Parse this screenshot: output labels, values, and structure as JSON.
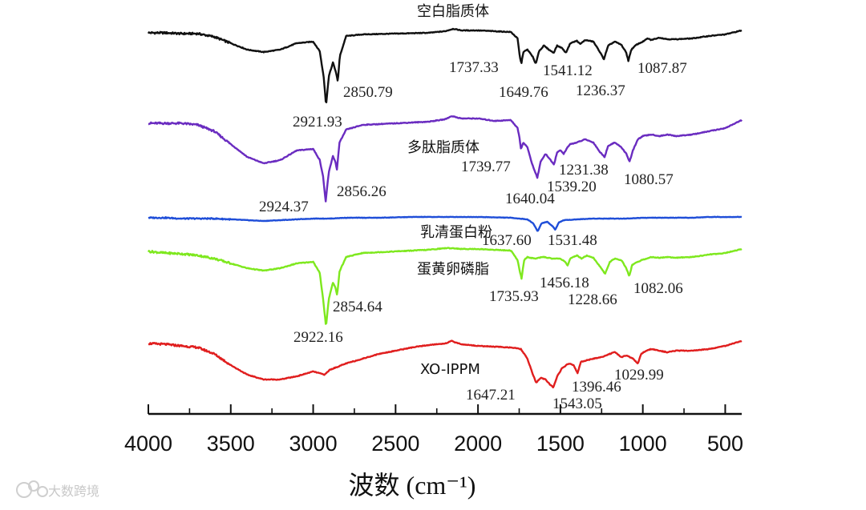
{
  "chart_data": {
    "type": "line",
    "xlabel": "波数 (cm⁻¹)",
    "xlim": [
      4000,
      400
    ],
    "x_ticks": [
      "4000",
      "3500",
      "3000",
      "2500",
      "2000",
      "1500",
      "1000",
      "500"
    ],
    "series": [
      {
        "name": "空白脂质体",
        "color": "#111111",
        "points": [
          [
            4000,
            -1
          ],
          [
            3900,
            -1
          ],
          [
            3800,
            -2
          ],
          [
            3700,
            -2
          ],
          [
            3600,
            -6
          ],
          [
            3500,
            -14
          ],
          [
            3400,
            -22
          ],
          [
            3300,
            -25
          ],
          [
            3200,
            -22
          ],
          [
            3100,
            -14
          ],
          [
            3000,
            -12
          ],
          [
            2960,
            -24
          ],
          [
            2935,
            -58
          ],
          [
            2921.93,
            -92
          ],
          [
            2905,
            -55
          ],
          [
            2880,
            -38
          ],
          [
            2862,
            -50
          ],
          [
            2850.79,
            -62
          ],
          [
            2838,
            -30
          ],
          [
            2800,
            -5
          ],
          [
            2700,
            -3
          ],
          [
            2500,
            -2
          ],
          [
            2300,
            -1
          ],
          [
            2200,
            1
          ],
          [
            2150,
            4
          ],
          [
            2100,
            2
          ],
          [
            2000,
            2
          ],
          [
            1900,
            1
          ],
          [
            1800,
            0
          ],
          [
            1760,
            -8
          ],
          [
            1748,
            -28
          ],
          [
            1737.33,
            -40
          ],
          [
            1725,
            -25
          ],
          [
            1700,
            -22
          ],
          [
            1670,
            -30
          ],
          [
            1649.76,
            -40
          ],
          [
            1630,
            -24
          ],
          [
            1600,
            -17
          ],
          [
            1570,
            -22
          ],
          [
            1541.12,
            -26
          ],
          [
            1520,
            -17
          ],
          [
            1490,
            -20
          ],
          [
            1467,
            -26
          ],
          [
            1440,
            -14
          ],
          [
            1400,
            -11
          ],
          [
            1380,
            -15
          ],
          [
            1350,
            -10
          ],
          [
            1300,
            -12
          ],
          [
            1260,
            -25
          ],
          [
            1236.37,
            -34
          ],
          [
            1210,
            -17
          ],
          [
            1170,
            -12
          ],
          [
            1130,
            -16
          ],
          [
            1100,
            -26
          ],
          [
            1087.87,
            -36
          ],
          [
            1070,
            -22
          ],
          [
            1040,
            -16
          ],
          [
            1000,
            -12
          ],
          [
            970,
            -8
          ],
          [
            950,
            -10
          ],
          [
            900,
            -7
          ],
          [
            850,
            -9
          ],
          [
            800,
            -9
          ],
          [
            700,
            -8
          ],
          [
            600,
            -5
          ],
          [
            500,
            -3
          ],
          [
            400,
            2
          ]
        ]
      },
      {
        "name": "多肽脂质体",
        "color": "#6a2cc0",
        "points": [
          [
            4000,
            -4
          ],
          [
            3900,
            -4
          ],
          [
            3800,
            -4
          ],
          [
            3700,
            -6
          ],
          [
            3600,
            -14
          ],
          [
            3500,
            -30
          ],
          [
            3400,
            -46
          ],
          [
            3300,
            -54
          ],
          [
            3200,
            -50
          ],
          [
            3100,
            -38
          ],
          [
            3000,
            -36
          ],
          [
            2960,
            -50
          ],
          [
            2940,
            -70
          ],
          [
            2924.37,
            -102
          ],
          [
            2905,
            -65
          ],
          [
            2880,
            -45
          ],
          [
            2865,
            -52
          ],
          [
            2856.26,
            -62
          ],
          [
            2840,
            -28
          ],
          [
            2800,
            -12
          ],
          [
            2700,
            -6
          ],
          [
            2500,
            -4
          ],
          [
            2300,
            -2
          ],
          [
            2200,
            1
          ],
          [
            2160,
            5
          ],
          [
            2100,
            2
          ],
          [
            2000,
            2
          ],
          [
            1900,
            -1
          ],
          [
            1800,
            0
          ],
          [
            1760,
            -10
          ],
          [
            1748,
            -22
          ],
          [
            1739.77,
            -36
          ],
          [
            1725,
            -28
          ],
          [
            1700,
            -34
          ],
          [
            1670,
            -56
          ],
          [
            1640.04,
            -72
          ],
          [
            1620,
            -52
          ],
          [
            1590,
            -42
          ],
          [
            1560,
            -50
          ],
          [
            1539.2,
            -56
          ],
          [
            1520,
            -40
          ],
          [
            1500,
            -38
          ],
          [
            1480,
            -42
          ],
          [
            1456,
            -34
          ],
          [
            1440,
            -30
          ],
          [
            1400,
            -28
          ],
          [
            1350,
            -24
          ],
          [
            1300,
            -28
          ],
          [
            1260,
            -40
          ],
          [
            1231.38,
            -46
          ],
          [
            1210,
            -32
          ],
          [
            1170,
            -28
          ],
          [
            1130,
            -34
          ],
          [
            1100,
            -42
          ],
          [
            1080.57,
            -52
          ],
          [
            1060,
            -38
          ],
          [
            1030,
            -24
          ],
          [
            1000,
            -20
          ],
          [
            950,
            -18
          ],
          [
            900,
            -20
          ],
          [
            850,
            -18
          ],
          [
            800,
            -20
          ],
          [
            700,
            -18
          ],
          [
            600,
            -14
          ],
          [
            500,
            -10
          ],
          [
            400,
            0
          ]
        ]
      },
      {
        "name": "乳清蛋白粉",
        "color": "#1f4ed8",
        "points": [
          [
            4000,
            -1
          ],
          [
            3900,
            -1
          ],
          [
            3800,
            -2
          ],
          [
            3700,
            -2
          ],
          [
            3600,
            -2
          ],
          [
            3500,
            -3
          ],
          [
            3400,
            -4
          ],
          [
            3300,
            -5
          ],
          [
            3200,
            -4
          ],
          [
            3100,
            -3
          ],
          [
            3000,
            -2
          ],
          [
            2900,
            -2
          ],
          [
            2800,
            -1
          ],
          [
            2600,
            -1
          ],
          [
            2400,
            0
          ],
          [
            2200,
            0
          ],
          [
            2000,
            0
          ],
          [
            1800,
            -1
          ],
          [
            1700,
            -3
          ],
          [
            1665,
            -8
          ],
          [
            1637.6,
            -18
          ],
          [
            1615,
            -8
          ],
          [
            1580,
            -6
          ],
          [
            1545,
            -12
          ],
          [
            1531.48,
            -16
          ],
          [
            1510,
            -7
          ],
          [
            1480,
            -4
          ],
          [
            1400,
            -3
          ],
          [
            1300,
            -2
          ],
          [
            1200,
            -2
          ],
          [
            1100,
            -2
          ],
          [
            1000,
            -1
          ],
          [
            900,
            -1
          ],
          [
            800,
            -1
          ],
          [
            700,
            -1
          ],
          [
            600,
            0
          ],
          [
            500,
            0
          ],
          [
            400,
            0
          ]
        ]
      },
      {
        "name": "蛋黄卵磷脂",
        "color": "#7ee81e",
        "points": [
          [
            4000,
            -1
          ],
          [
            3900,
            -3
          ],
          [
            3800,
            -4
          ],
          [
            3700,
            -6
          ],
          [
            3600,
            -10
          ],
          [
            3500,
            -16
          ],
          [
            3400,
            -22
          ],
          [
            3300,
            -25
          ],
          [
            3200,
            -22
          ],
          [
            3100,
            -16
          ],
          [
            3000,
            -14
          ],
          [
            2960,
            -28
          ],
          [
            2940,
            -60
          ],
          [
            2922.16,
            -95
          ],
          [
            2905,
            -60
          ],
          [
            2880,
            -40
          ],
          [
            2865,
            -46
          ],
          [
            2854.64,
            -56
          ],
          [
            2840,
            -26
          ],
          [
            2800,
            -8
          ],
          [
            2700,
            -3
          ],
          [
            2500,
            -1
          ],
          [
            2300,
            1
          ],
          [
            2200,
            3
          ],
          [
            2150,
            3
          ],
          [
            2100,
            2
          ],
          [
            2000,
            2
          ],
          [
            1900,
            1
          ],
          [
            1800,
            0
          ],
          [
            1760,
            -12
          ],
          [
            1748,
            -24
          ],
          [
            1735.93,
            -35
          ],
          [
            1720,
            -12
          ],
          [
            1700,
            -8
          ],
          [
            1660,
            -10
          ],
          [
            1600,
            -8
          ],
          [
            1550,
            -10
          ],
          [
            1500,
            -10
          ],
          [
            1470,
            -14
          ],
          [
            1456.18,
            -19
          ],
          [
            1440,
            -10
          ],
          [
            1400,
            -6
          ],
          [
            1370,
            -10
          ],
          [
            1340,
            -6
          ],
          [
            1300,
            -9
          ],
          [
            1260,
            -20
          ],
          [
            1228.66,
            -29
          ],
          [
            1200,
            -14
          ],
          [
            1170,
            -10
          ],
          [
            1130,
            -12
          ],
          [
            1100,
            -22
          ],
          [
            1082.06,
            -32
          ],
          [
            1065,
            -18
          ],
          [
            1030,
            -14
          ],
          [
            1000,
            -11
          ],
          [
            970,
            -10
          ],
          [
            950,
            -8
          ],
          [
            900,
            -9
          ],
          [
            850,
            -8
          ],
          [
            800,
            -9
          ],
          [
            700,
            -8
          ],
          [
            600,
            -5
          ],
          [
            500,
            -3
          ],
          [
            400,
            2
          ]
        ]
      },
      {
        "name": "XO-IPPM",
        "color": "#e01e1e",
        "points": [
          [
            4000,
            -1
          ],
          [
            3900,
            -2
          ],
          [
            3800,
            -4
          ],
          [
            3700,
            -6
          ],
          [
            3600,
            -14
          ],
          [
            3500,
            -28
          ],
          [
            3400,
            -40
          ],
          [
            3300,
            -46
          ],
          [
            3200,
            -46
          ],
          [
            3100,
            -42
          ],
          [
            3000,
            -36
          ],
          [
            2930,
            -40
          ],
          [
            2900,
            -34
          ],
          [
            2800,
            -26
          ],
          [
            2700,
            -20
          ],
          [
            2600,
            -14
          ],
          [
            2500,
            -10
          ],
          [
            2400,
            -6
          ],
          [
            2300,
            -3
          ],
          [
            2200,
            -1
          ],
          [
            2160,
            2
          ],
          [
            2100,
            -2
          ],
          [
            2000,
            -4
          ],
          [
            1900,
            -5
          ],
          [
            1800,
            -6
          ],
          [
            1740,
            -8
          ],
          [
            1700,
            -20
          ],
          [
            1670,
            -38
          ],
          [
            1647.21,
            -50
          ],
          [
            1620,
            -44
          ],
          [
            1590,
            -46
          ],
          [
            1565,
            -52
          ],
          [
            1543.05,
            -56
          ],
          [
            1520,
            -42
          ],
          [
            1490,
            -32
          ],
          [
            1450,
            -26
          ],
          [
            1420,
            -28
          ],
          [
            1396.46,
            -38
          ],
          [
            1375,
            -24
          ],
          [
            1340,
            -22
          ],
          [
            1300,
            -20
          ],
          [
            1250,
            -18
          ],
          [
            1200,
            -14
          ],
          [
            1170,
            -12
          ],
          [
            1130,
            -18
          ],
          [
            1100,
            -16
          ],
          [
            1060,
            -20
          ],
          [
            1029.99,
            -26
          ],
          [
            1010,
            -14
          ],
          [
            980,
            -10
          ],
          [
            950,
            -8
          ],
          [
            900,
            -10
          ],
          [
            850,
            -12
          ],
          [
            800,
            -10
          ],
          [
            700,
            -10
          ],
          [
            600,
            -8
          ],
          [
            500,
            -4
          ],
          [
            400,
            2
          ]
        ]
      }
    ],
    "peak_labels": [
      {
        "series": 0,
        "text": "2921.93"
      },
      {
        "series": 0,
        "text": "2850.79"
      },
      {
        "series": 0,
        "text": "1737.33"
      },
      {
        "series": 0,
        "text": "1649.76"
      },
      {
        "series": 0,
        "text": "1541.12"
      },
      {
        "series": 0,
        "text": "1236.37"
      },
      {
        "series": 0,
        "text": "1087.87"
      },
      {
        "series": 1,
        "text": "2924.37"
      },
      {
        "series": 1,
        "text": "2856.26"
      },
      {
        "series": 1,
        "text": "1739.77"
      },
      {
        "series": 1,
        "text": "1640.04"
      },
      {
        "series": 1,
        "text": "1539.20"
      },
      {
        "series": 1,
        "text": "1231.38"
      },
      {
        "series": 1,
        "text": "1080.57"
      },
      {
        "series": 2,
        "text": "1637.60"
      },
      {
        "series": 2,
        "text": "1531.48"
      },
      {
        "series": 3,
        "text": "2922.16"
      },
      {
        "series": 3,
        "text": "2854.64"
      },
      {
        "series": 3,
        "text": "1735.93"
      },
      {
        "series": 3,
        "text": "1456.18"
      },
      {
        "series": 3,
        "text": "1228.66"
      },
      {
        "series": 3,
        "text": "1082.06"
      },
      {
        "series": 4,
        "text": "1647.21"
      },
      {
        "series": 4,
        "text": "1543.05"
      },
      {
        "series": 4,
        "text": "1396.46"
      },
      {
        "series": 4,
        "text": "1029.99"
      }
    ],
    "grid": false
  },
  "watermark": "大数跨境"
}
